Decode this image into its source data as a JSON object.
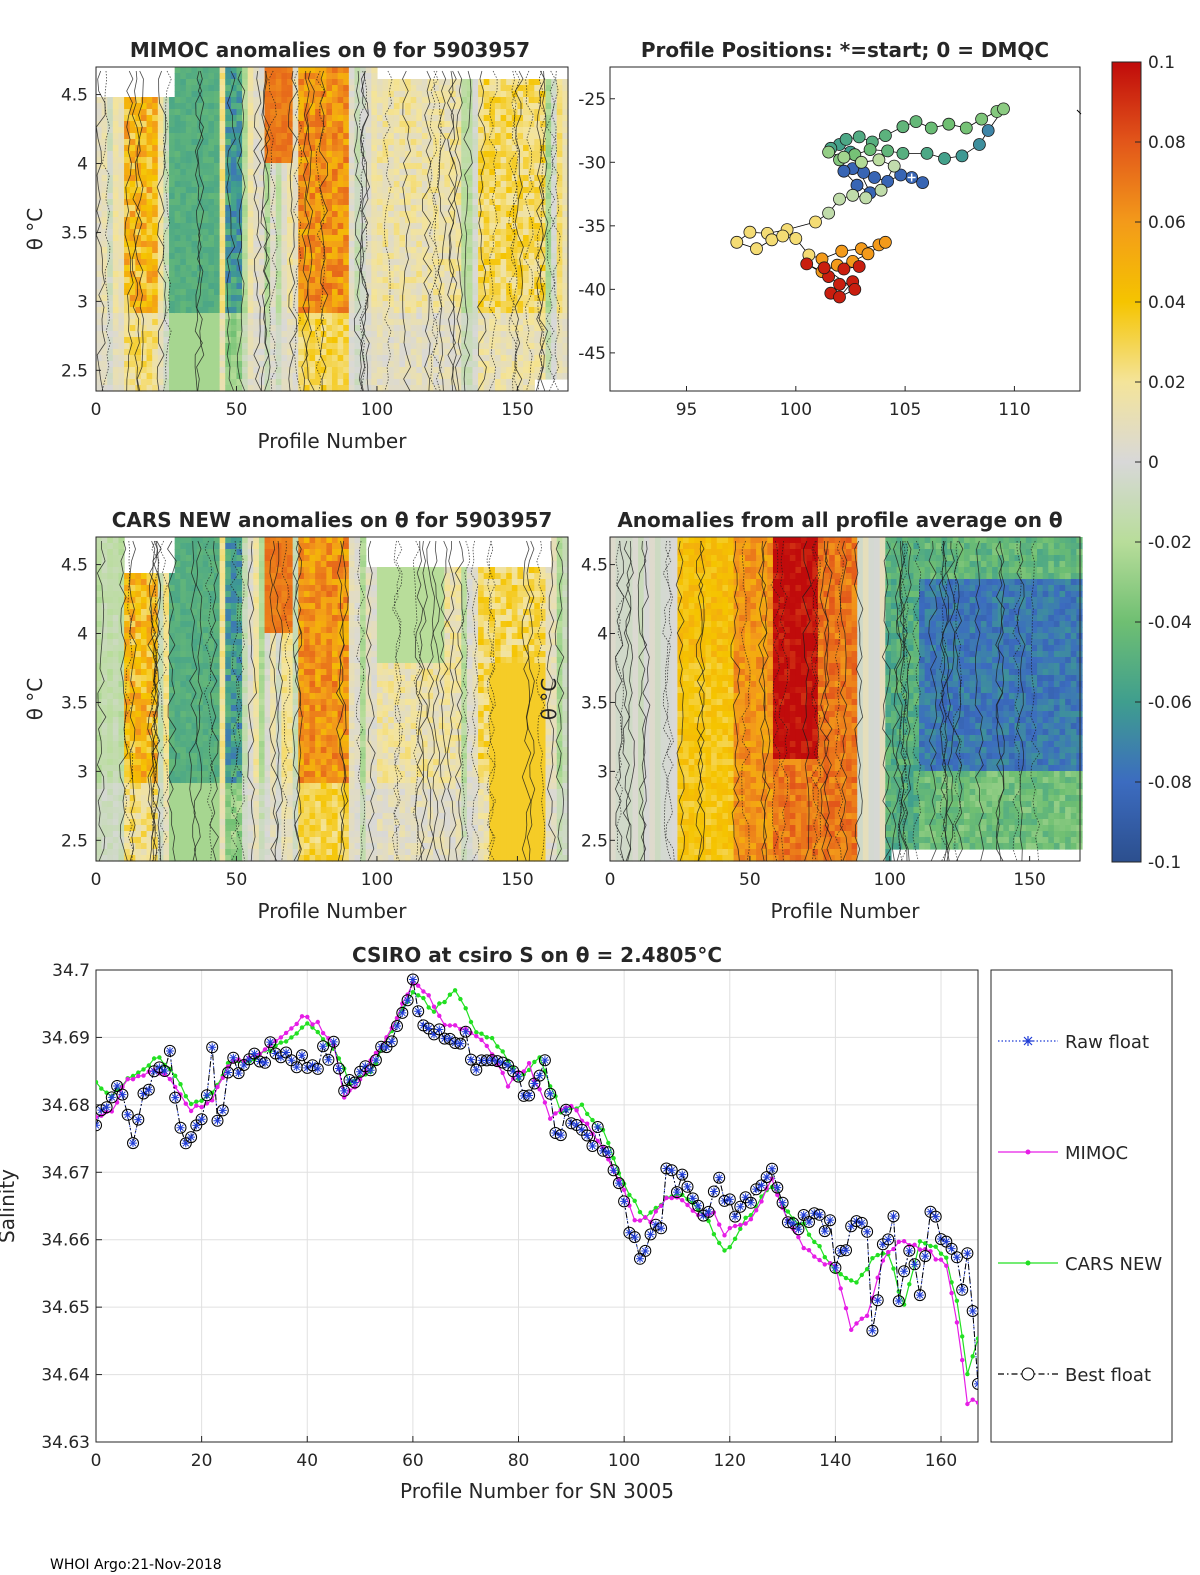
{
  "footer": "WHOI Argo:21-Nov-2018",
  "colorbar": {
    "ticks": [
      "0.1",
      "0.08",
      "0.06",
      "0.04",
      "0.02",
      "0",
      "-0.02",
      "-0.04",
      "-0.06",
      "-0.08",
      "-0.1"
    ],
    "min": -0.1,
    "max": 0.1,
    "colors": [
      "#2c4f8e",
      "#3c6cc0",
      "#3f9e8e",
      "#6fbf72",
      "#b8dd9a",
      "#d8d8d8",
      "#f4e49a",
      "#f5c400",
      "#f39a1a",
      "#e2561a",
      "#c00b0b"
    ]
  },
  "panels": {
    "mimoc": {
      "title": "MIMOC anomalies on θ  for 5903957",
      "xlabel": "Profile Number",
      "ylabel": "θ °C",
      "xticks": [
        "0",
        "50",
        "100",
        "150"
      ],
      "yticks": [
        "4.5",
        "4",
        "3.5",
        "3",
        "2.5"
      ]
    },
    "positions": {
      "title": "Profile Positions: *=start; 0 = DMQC",
      "xticks": [
        "95",
        "100",
        "105",
        "110"
      ],
      "yticks": [
        "-25",
        "-30",
        "-35",
        "-40",
        "-45"
      ]
    },
    "cars": {
      "title": "CARS NEW anomalies on θ for 5903957",
      "xlabel": "Profile Number",
      "ylabel": "θ °C",
      "xticks": [
        "0",
        "50",
        "100",
        "150"
      ],
      "yticks": [
        "4.5",
        "4",
        "3.5",
        "3",
        "2.5"
      ]
    },
    "allavg": {
      "title": "Anomalies from all profile average on θ",
      "xlabel": "Profile Number",
      "ylabel": "θ °C",
      "xticks": [
        "0",
        "50",
        "100",
        "150"
      ],
      "yticks": [
        "4.5",
        "4",
        "3.5",
        "3",
        "2.5"
      ]
    }
  },
  "chart_data": {
    "type": "line",
    "title": "CSIRO at csiro S on θ = 2.4805°C",
    "xlabel": "Profile Number for SN 3005",
    "ylabel": "Salinity",
    "xlim": [
      0,
      167
    ],
    "ylim": [
      34.63,
      34.7
    ],
    "xticks": [
      "0",
      "20",
      "40",
      "60",
      "80",
      "100",
      "120",
      "140",
      "160"
    ],
    "yticks": [
      "34.7",
      "34.69",
      "34.68",
      "34.67",
      "34.66",
      "34.65",
      "34.64",
      "34.63"
    ],
    "legend": [
      "Raw float",
      "MIMOC",
      "CARS NEW",
      "Best float"
    ],
    "legend_position": "right-outside",
    "anchors_float": [
      [
        0,
        34.677
      ],
      [
        2,
        34.681
      ],
      [
        4,
        34.683
      ],
      [
        6,
        34.68
      ],
      [
        7,
        34.673
      ],
      [
        9,
        34.682
      ],
      [
        12,
        34.685
      ],
      [
        14,
        34.688
      ],
      [
        16,
        34.676
      ],
      [
        18,
        34.675
      ],
      [
        20,
        34.679
      ],
      [
        22,
        34.687
      ],
      [
        23,
        34.676
      ],
      [
        25,
        34.685
      ],
      [
        30,
        34.687
      ],
      [
        35,
        34.688
      ],
      [
        40,
        34.686
      ],
      [
        45,
        34.688
      ],
      [
        47,
        34.683
      ],
      [
        50,
        34.684
      ],
      [
        55,
        34.69
      ],
      [
        58,
        34.693
      ],
      [
        60,
        34.697
      ],
      [
        62,
        34.692
      ],
      [
        65,
        34.69
      ],
      [
        70,
        34.69
      ],
      [
        72,
        34.686
      ],
      [
        75,
        34.685
      ],
      [
        78,
        34.685
      ],
      [
        80,
        34.684
      ],
      [
        82,
        34.682
      ],
      [
        85,
        34.687
      ],
      [
        87,
        34.675
      ],
      [
        90,
        34.679
      ],
      [
        92,
        34.676
      ],
      [
        95,
        34.675
      ],
      [
        98,
        34.67
      ],
      [
        100,
        34.667
      ],
      [
        101,
        34.66
      ],
      [
        103,
        34.658
      ],
      [
        105,
        34.662
      ],
      [
        107,
        34.661
      ],
      [
        108,
        34.67
      ],
      [
        110,
        34.668
      ],
      [
        112,
        34.669
      ],
      [
        116,
        34.664
      ],
      [
        118,
        34.668
      ],
      [
        121,
        34.665
      ],
      [
        124,
        34.667
      ],
      [
        127,
        34.67
      ],
      [
        129,
        34.669
      ],
      [
        132,
        34.662
      ],
      [
        134,
        34.664
      ],
      [
        137,
        34.664
      ],
      [
        139,
        34.662
      ],
      [
        140,
        34.656
      ],
      [
        142,
        34.659
      ],
      [
        144,
        34.662
      ],
      [
        146,
        34.662
      ],
      [
        147,
        34.647
      ],
      [
        149,
        34.658
      ],
      [
        151,
        34.665
      ],
      [
        152,
        34.652
      ],
      [
        154,
        34.66
      ],
      [
        156,
        34.652
      ],
      [
        158,
        34.664
      ],
      [
        160,
        34.66
      ],
      [
        162,
        34.66
      ],
      [
        164,
        34.652
      ],
      [
        165,
        34.658
      ],
      [
        167,
        34.638
      ]
    ],
    "anchors_mimoc": [
      [
        0,
        34.678
      ],
      [
        3,
        34.679
      ],
      [
        6,
        34.684
      ],
      [
        12,
        34.685
      ],
      [
        15,
        34.683
      ],
      [
        18,
        34.679
      ],
      [
        22,
        34.681
      ],
      [
        25,
        34.686
      ],
      [
        30,
        34.687
      ],
      [
        35,
        34.69
      ],
      [
        39,
        34.693
      ],
      [
        42,
        34.692
      ],
      [
        45,
        34.689
      ],
      [
        47,
        34.681
      ],
      [
        50,
        34.684
      ],
      [
        55,
        34.69
      ],
      [
        60,
        34.698
      ],
      [
        63,
        34.696
      ],
      [
        66,
        34.692
      ],
      [
        70,
        34.691
      ],
      [
        74,
        34.689
      ],
      [
        78,
        34.683
      ],
      [
        82,
        34.686
      ],
      [
        86,
        34.678
      ],
      [
        90,
        34.68
      ],
      [
        95,
        34.675
      ],
      [
        99,
        34.669
      ],
      [
        102,
        34.663
      ],
      [
        105,
        34.663
      ],
      [
        108,
        34.666
      ],
      [
        110,
        34.666
      ],
      [
        114,
        34.664
      ],
      [
        117,
        34.664
      ],
      [
        119,
        34.661
      ],
      [
        121,
        34.662
      ],
      [
        124,
        34.663
      ],
      [
        128,
        34.669
      ],
      [
        131,
        34.663
      ],
      [
        134,
        34.659
      ],
      [
        137,
        34.657
      ],
      [
        140,
        34.656
      ],
      [
        143,
        34.647
      ],
      [
        146,
        34.649
      ],
      [
        149,
        34.657
      ],
      [
        152,
        34.66
      ],
      [
        155,
        34.659
      ],
      [
        158,
        34.658
      ],
      [
        161,
        34.656
      ],
      [
        163,
        34.648
      ],
      [
        165,
        34.636
      ],
      [
        167,
        34.636
      ]
    ],
    "anchors_cars": [
      [
        0,
        34.683
      ],
      [
        3,
        34.681
      ],
      [
        6,
        34.684
      ],
      [
        12,
        34.687
      ],
      [
        15,
        34.684
      ],
      [
        18,
        34.68
      ],
      [
        22,
        34.682
      ],
      [
        25,
        34.686
      ],
      [
        30,
        34.687
      ],
      [
        35,
        34.689
      ],
      [
        40,
        34.692
      ],
      [
        43,
        34.69
      ],
      [
        46,
        34.687
      ],
      [
        48,
        34.683
      ],
      [
        52,
        34.685
      ],
      [
        56,
        34.691
      ],
      [
        60,
        34.697
      ],
      [
        64,
        34.694
      ],
      [
        68,
        34.697
      ],
      [
        72,
        34.691
      ],
      [
        76,
        34.689
      ],
      [
        80,
        34.684
      ],
      [
        84,
        34.687
      ],
      [
        88,
        34.679
      ],
      [
        92,
        34.68
      ],
      [
        96,
        34.676
      ],
      [
        100,
        34.668
      ],
      [
        104,
        34.663
      ],
      [
        108,
        34.666
      ],
      [
        111,
        34.667
      ],
      [
        115,
        34.664
      ],
      [
        119,
        34.658
      ],
      [
        123,
        34.663
      ],
      [
        128,
        34.668
      ],
      [
        131,
        34.664
      ],
      [
        134,
        34.662
      ],
      [
        137,
        34.659
      ],
      [
        140,
        34.655
      ],
      [
        144,
        34.654
      ],
      [
        147,
        34.657
      ],
      [
        150,
        34.658
      ],
      [
        153,
        34.65
      ],
      [
        156,
        34.66
      ],
      [
        159,
        34.659
      ],
      [
        161,
        34.657
      ],
      [
        163,
        34.651
      ],
      [
        165,
        34.64
      ],
      [
        167,
        34.645
      ]
    ]
  }
}
